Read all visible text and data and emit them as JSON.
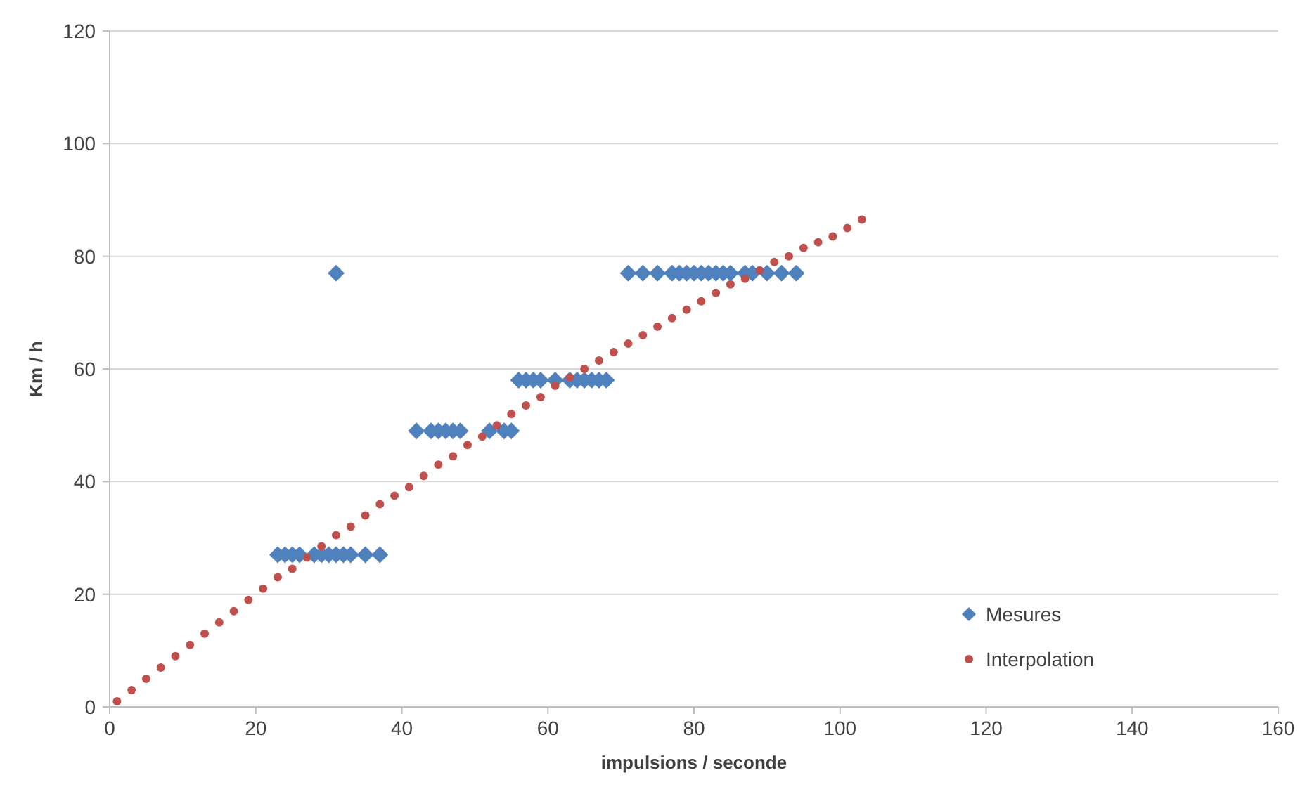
{
  "chart_data": {
    "type": "scatter",
    "xlabel": "impulsions / seconde",
    "ylabel": "Km / h",
    "xlim": [
      0,
      160
    ],
    "xticks": [
      0,
      20,
      40,
      60,
      80,
      100,
      120,
      140,
      160
    ],
    "ylim": [
      0,
      120
    ],
    "yticks": [
      0,
      20,
      40,
      60,
      80,
      100,
      120
    ],
    "grid": "y",
    "legend": "bottom right",
    "series": [
      {
        "name": "Mesures",
        "color": "#4f81bd",
        "marker": "diamond",
        "x": [
          23,
          24,
          25,
          26,
          28,
          29,
          30,
          31,
          32,
          33,
          35,
          37,
          31,
          42,
          44,
          45,
          46,
          47,
          48,
          52,
          54,
          55,
          56,
          57,
          58,
          59,
          61,
          63,
          64,
          65,
          66,
          67,
          68,
          71,
          73,
          75,
          77,
          78,
          79,
          80,
          81,
          82,
          83,
          84,
          85,
          87,
          88,
          90,
          92,
          94
        ],
        "values": [
          27,
          27,
          27,
          27,
          27,
          27,
          27,
          27,
          27,
          27,
          27,
          27,
          77,
          49,
          49,
          49,
          49,
          49,
          49,
          49,
          49,
          49,
          58,
          58,
          58,
          58,
          58,
          58,
          58,
          58,
          58,
          58,
          58,
          77,
          77,
          77,
          77,
          77,
          77,
          77,
          77,
          77,
          77,
          77,
          77,
          77,
          77,
          77,
          77,
          77
        ]
      },
      {
        "name": "Interpolation",
        "color": "#c0504d",
        "marker": "circle",
        "x": [
          1,
          3,
          5,
          7,
          9,
          11,
          13,
          15,
          17,
          19,
          21,
          23,
          25,
          27,
          29,
          31,
          33,
          35,
          37,
          39,
          41,
          43,
          45,
          47,
          49,
          51,
          53,
          55,
          57,
          59,
          61,
          63,
          65,
          67,
          69,
          71,
          73,
          75,
          77,
          79,
          81,
          83,
          85,
          87,
          89,
          91,
          93,
          95,
          97,
          99,
          101,
          103
        ],
        "values": [
          1,
          3,
          5,
          7,
          9,
          11,
          13,
          15,
          17,
          19,
          21,
          23,
          24.5,
          26.5,
          28.5,
          30.5,
          32,
          34,
          36,
          37.5,
          39,
          41,
          43,
          44.5,
          46.5,
          48,
          50,
          52,
          53.5,
          55,
          57,
          58.5,
          60,
          61.5,
          63,
          64.5,
          66,
          67.5,
          69,
          70.5,
          72,
          73.5,
          75,
          76,
          77.5,
          79,
          80,
          81.5,
          82.5,
          83.5,
          85,
          86.5
        ]
      }
    ]
  }
}
